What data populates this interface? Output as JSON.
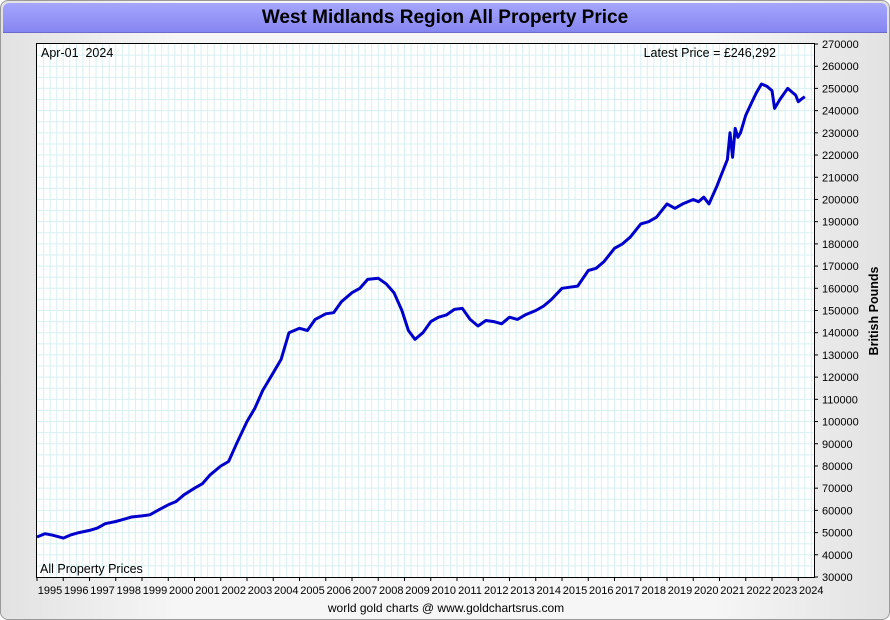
{
  "chart_data": {
    "type": "line",
    "title": "West Midlands Region All Property Price",
    "date_label": "Apr-01  2024",
    "latest_label": "Latest Price = £246,292",
    "series_label": "All Property Prices",
    "ylabel": "British Pounds",
    "footer": "world gold charts @ www.goldchartsrus.com",
    "xlim": [
      1995,
      2024.6
    ],
    "ylim": [
      30000,
      270000
    ],
    "x_ticks": [
      1995,
      1996,
      1997,
      1998,
      1999,
      2000,
      2001,
      2002,
      2003,
      2004,
      2005,
      2006,
      2007,
      2008,
      2009,
      2010,
      2011,
      2012,
      2013,
      2014,
      2015,
      2016,
      2017,
      2018,
      2019,
      2020,
      2021,
      2022,
      2023,
      2024
    ],
    "y_ticks": [
      30000,
      40000,
      50000,
      60000,
      70000,
      80000,
      90000,
      100000,
      110000,
      120000,
      130000,
      140000,
      150000,
      160000,
      170000,
      180000,
      190000,
      200000,
      210000,
      220000,
      230000,
      240000,
      250000,
      260000,
      270000
    ],
    "line_color": "#0000cc",
    "grid": true,
    "series": [
      {
        "x": [
          1995.0,
          1995.3,
          1995.6,
          1996.0,
          1996.3,
          1996.6,
          1997.0,
          1997.3,
          1997.6,
          1998.0,
          1998.3,
          1998.6,
          1999.0,
          1999.3,
          1999.6,
          2000.0,
          2000.3,
          2000.6,
          2001.0,
          2001.3,
          2001.6,
          2002.0,
          2002.3,
          2002.6,
          2003.0,
          2003.3,
          2003.6,
          2004.0,
          2004.3,
          2004.6,
          2005.0,
          2005.3,
          2005.6,
          2006.0,
          2006.3,
          2006.6,
          2007.0,
          2007.3,
          2007.6,
          2008.0,
          2008.3,
          2008.6,
          2008.9,
          2009.15,
          2009.4,
          2009.7,
          2010.0,
          2010.3,
          2010.6,
          2010.9,
          2011.2,
          2011.5,
          2011.8,
          2012.1,
          2012.4,
          2012.7,
          2013.0,
          2013.3,
          2013.6,
          2014.0,
          2014.3,
          2014.6,
          2015.0,
          2015.3,
          2015.6,
          2016.0,
          2016.3,
          2016.6,
          2017.0,
          2017.3,
          2017.6,
          2018.0,
          2018.3,
          2018.6,
          2019.0,
          2019.3,
          2019.6,
          2020.0,
          2020.2,
          2020.4,
          2020.6,
          2020.9,
          2021.1,
          2021.3,
          2021.4,
          2021.5,
          2021.6,
          2021.7,
          2021.8,
          2022.0,
          2022.2,
          2022.4,
          2022.6,
          2022.8,
          2023.0,
          2023.1,
          2023.3,
          2023.6,
          2023.9,
          2024.0,
          2024.1,
          2024.25
        ],
        "y": [
          48000,
          49500,
          48800,
          47500,
          49000,
          50000,
          51000,
          52000,
          54000,
          55000,
          56000,
          57000,
          57500,
          58000,
          60000,
          62500,
          64000,
          67000,
          70000,
          72000,
          76000,
          80000,
          82000,
          90000,
          100000,
          106000,
          114000,
          122000,
          128000,
          140000,
          142000,
          141000,
          146000,
          148500,
          149000,
          154000,
          158000,
          160000,
          164000,
          164500,
          162000,
          158000,
          150000,
          141000,
          137000,
          140000,
          145000,
          147000,
          148000,
          150500,
          151000,
          146000,
          143000,
          145500,
          145000,
          144000,
          147000,
          146000,
          148000,
          150000,
          152000,
          155000,
          160000,
          160500,
          161000,
          168000,
          169000,
          172000,
          178000,
          180000,
          183000,
          189000,
          190000,
          192000,
          198000,
          196000,
          198000,
          200000,
          199000,
          201000,
          198000,
          206000,
          212000,
          218000,
          230000,
          219000,
          232000,
          228000,
          230000,
          238000,
          243000,
          248000,
          252000,
          251000,
          249000,
          241000,
          245000,
          250000,
          247000,
          244000,
          245000,
          246292
        ]
      }
    ]
  }
}
